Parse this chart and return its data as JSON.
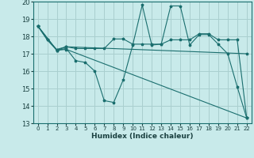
{
  "background_color": "#c8eaea",
  "grid_color": "#aacfcf",
  "line_color": "#1a6e6e",
  "xlabel": "Humidex (Indice chaleur)",
  "xlim": [
    -0.5,
    22.5
  ],
  "ylim": [
    13,
    20
  ],
  "yticks": [
    13,
    14,
    15,
    16,
    17,
    18,
    19,
    20
  ],
  "xticks": [
    0,
    1,
    2,
    3,
    4,
    5,
    6,
    7,
    8,
    9,
    10,
    11,
    12,
    13,
    14,
    15,
    16,
    17,
    18,
    19,
    20,
    21,
    22
  ],
  "series": [
    {
      "x": [
        0,
        1,
        2,
        3,
        4,
        5,
        6,
        7,
        8,
        9,
        10,
        11,
        12,
        13,
        14,
        15,
        16,
        17,
        18,
        19,
        20,
        21,
        22
      ],
      "y": [
        18.6,
        17.8,
        17.2,
        17.3,
        16.6,
        16.5,
        16.0,
        14.3,
        14.2,
        15.5,
        17.5,
        19.8,
        17.5,
        17.55,
        19.75,
        19.75,
        17.5,
        18.1,
        18.1,
        17.55,
        17.0,
        15.1,
        13.3
      ]
    },
    {
      "x": [
        0,
        1,
        2,
        3,
        4,
        5,
        6,
        7,
        8,
        9,
        10,
        11,
        12,
        13,
        14,
        15,
        16,
        17,
        18,
        19,
        20,
        21,
        22
      ],
      "y": [
        18.6,
        17.8,
        17.25,
        17.4,
        17.3,
        17.3,
        17.3,
        17.3,
        17.85,
        17.85,
        17.55,
        17.55,
        17.55,
        17.55,
        17.8,
        17.8,
        17.8,
        18.15,
        18.15,
        17.8,
        17.8,
        17.8,
        13.3
      ]
    },
    {
      "x": [
        0,
        2,
        3,
        22
      ],
      "y": [
        18.6,
        17.2,
        17.4,
        17.0
      ]
    },
    {
      "x": [
        0,
        2,
        3,
        22
      ],
      "y": [
        18.6,
        17.2,
        17.25,
        13.3
      ]
    }
  ]
}
